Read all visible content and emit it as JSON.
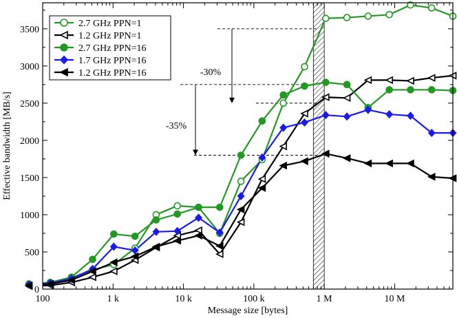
{
  "chart_data": {
    "type": "line",
    "title": "",
    "xlabel": "Message size [bytes]",
    "ylabel": "Effective bandwidth [MB/s]",
    "xscale": "log",
    "xlim": [
      100,
      67108864
    ],
    "ylim": [
      0,
      3850
    ],
    "x_ticks": [
      {
        "value": 100,
        "label": "100"
      },
      {
        "value": 1000,
        "label": "1 k"
      },
      {
        "value": 10000,
        "label": "10 k"
      },
      {
        "value": 100000,
        "label": "100 k"
      },
      {
        "value": 1000000,
        "label": "1 M"
      },
      {
        "value": 10000000,
        "label": "10 M"
      }
    ],
    "y_ticks": [
      0,
      500,
      1000,
      1500,
      2000,
      2500,
      3000,
      3500
    ],
    "x": [
      64,
      128,
      256,
      512,
      1024,
      2048,
      4096,
      8192,
      16384,
      32768,
      65536,
      131072,
      262144,
      524288,
      1048576,
      2097152,
      4194304,
      8388608,
      16777216,
      33554432,
      67108864
    ],
    "legend_position": "top-left",
    "series": [
      {
        "name": "2.7 GHz PPN=1",
        "color": "#229922",
        "marker": "circle-open",
        "values": [
          60,
          80,
          150,
          260,
          330,
          550,
          1000,
          1120,
          1100,
          750,
          1450,
          1740,
          2500,
          2990,
          3640,
          3650,
          3670,
          3690,
          3820,
          3780,
          3670
        ]
      },
      {
        "name": "1.2 GHz PPN=1",
        "color": "#000000",
        "marker": "triangle-left-open",
        "values": [
          40,
          50,
          90,
          160,
          240,
          390,
          560,
          720,
          790,
          470,
          900,
          1480,
          1920,
          2360,
          2580,
          2570,
          2810,
          2810,
          2800,
          2840,
          2870
        ]
      },
      {
        "name": "2.7 GHz PPN=16",
        "color": "#229922",
        "marker": "circle-filled",
        "values": [
          70,
          90,
          160,
          400,
          740,
          710,
          930,
          1010,
          1100,
          1100,
          1800,
          2260,
          2610,
          2730,
          2780,
          2750,
          2440,
          2680,
          2680,
          2680,
          2670
        ]
      },
      {
        "name": "1.7 GHz PPN=16",
        "color": "#1a1aee",
        "marker": "diamond-filled",
        "values": [
          60,
          80,
          140,
          270,
          570,
          520,
          770,
          780,
          960,
          760,
          1250,
          1770,
          2170,
          2240,
          2340,
          2320,
          2410,
          2350,
          2330,
          2100,
          2100
        ]
      },
      {
        "name": "1.2 GHz PPN=16",
        "color": "#000000",
        "marker": "triangle-left-filled",
        "values": [
          50,
          70,
          120,
          240,
          360,
          440,
          570,
          650,
          720,
          580,
          1070,
          1360,
          1660,
          1720,
          1820,
          1760,
          1690,
          1690,
          1690,
          1510,
          1490
        ]
      }
    ],
    "annotations": [
      {
        "text": "-30%",
        "from_value": 3500,
        "to_value": 2500
      },
      {
        "text": "-35%",
        "from_value": 2750,
        "to_value": 1800
      }
    ],
    "shaded_band_x": [
      700000,
      1000000
    ]
  }
}
